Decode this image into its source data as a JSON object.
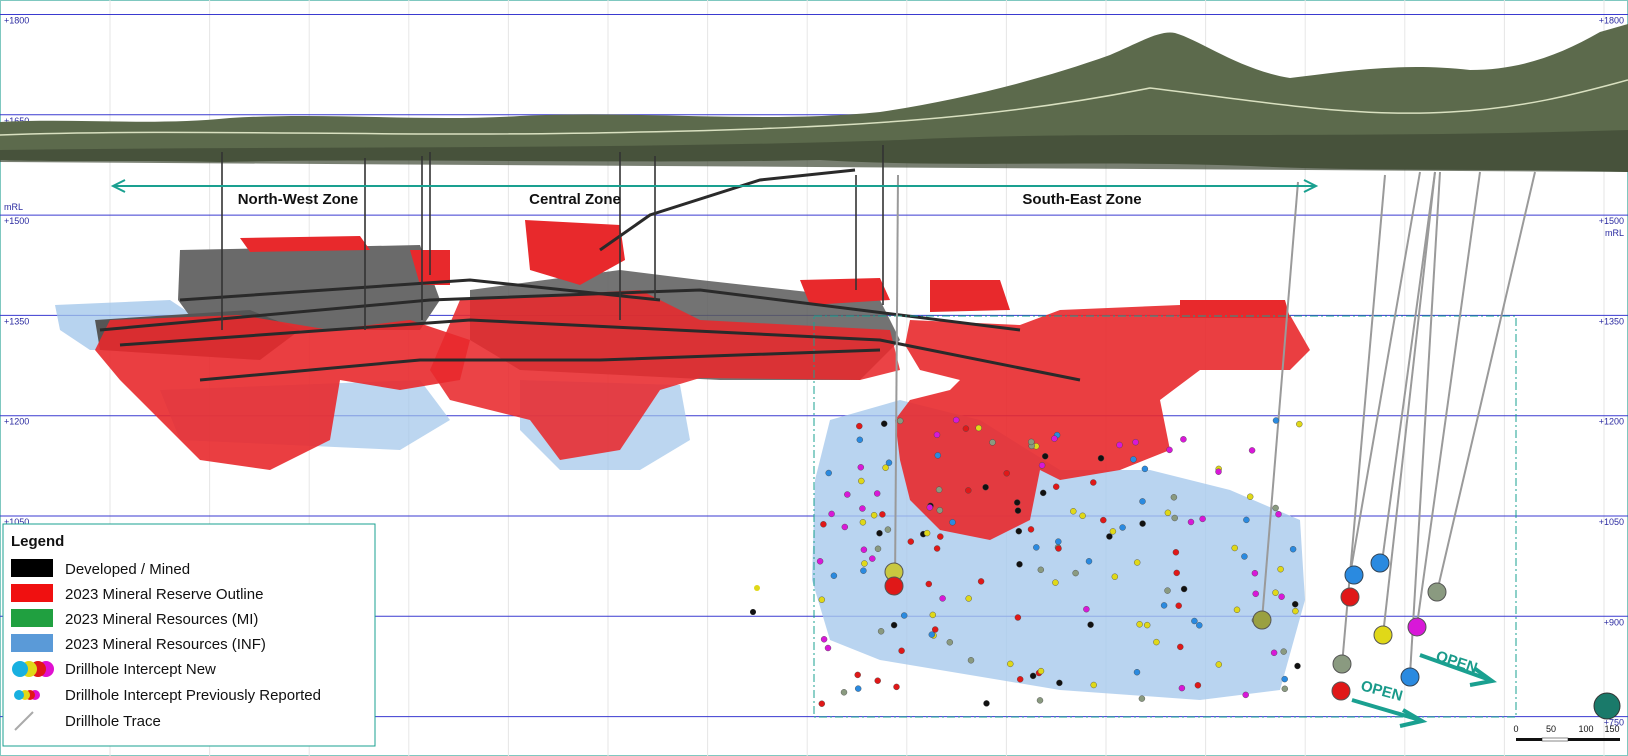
{
  "levels": [
    "+1800",
    "+1650",
    "+1500",
    "+1350",
    "+1200",
    "+1050",
    "+900",
    "+750"
  ],
  "axis_unit": "mRL",
  "zones": [
    "North-West Zone",
    "Central Zone",
    "South-East Zone"
  ],
  "legend": {
    "title": "Legend",
    "items": [
      "Developed / Mined",
      "2023 Mineral Reserve Outline",
      "2023 Mineral Resources (MI)",
      "2023 Mineral Resources (INF)",
      "Drillhole Intercept New",
      "Drillhole Intercept Previously Reported",
      "Drillhole Trace"
    ]
  },
  "annotations": [
    "OPEN",
    "OPEN"
  ],
  "scale_bar": [
    "0",
    "50",
    "100",
    "150"
  ]
}
